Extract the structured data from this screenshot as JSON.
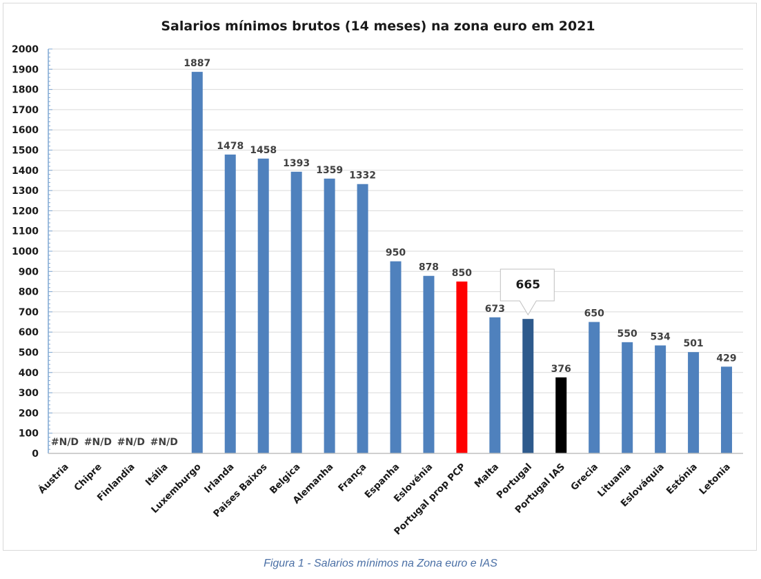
{
  "caption": "Figura 1 - Salarios mínimos na Zona euro e IAS",
  "colors": {
    "default_bar": "#4f81bd",
    "highlight_red": "#ff0000",
    "highlight_dark_blue": "#2e5a8c",
    "highlight_black": "#000000",
    "gridline": "#d9d9d9",
    "axis": "#7fa7d3"
  },
  "chart_data": {
    "type": "bar",
    "title": "Salarios mínimos brutos (14 meses) na zona euro em 2021",
    "xlabel": "",
    "ylabel": "",
    "ylim": [
      0,
      2000
    ],
    "y_ticks": [
      0,
      100,
      200,
      300,
      400,
      500,
      600,
      700,
      800,
      900,
      1000,
      1100,
      1200,
      1300,
      1400,
      1500,
      1600,
      1700,
      1800,
      1900,
      2000
    ],
    "y_tick_labels": [
      "0",
      "100",
      "200",
      "300",
      "400",
      "500",
      "600",
      "700",
      "800",
      "900",
      "1000",
      "1100",
      "1200",
      "1300",
      "1400",
      "1500",
      "1600",
      "1700",
      "1800",
      "1900",
      "2000"
    ],
    "grid": true,
    "legend": "none",
    "categories": [
      "Áustria",
      "Chipre",
      "Finlandia",
      "Itália",
      "Luxemburgo",
      "Irlanda",
      "Paises Baixos",
      "Belgica",
      "Alemanha",
      "França",
      "Espanha",
      "Eslovénia",
      "Portugal prop PCP",
      "Malta",
      "Portugal",
      "Portugal IAS",
      "Grecia",
      "Lituania",
      "Eslováquia",
      "Estónia",
      "Letonia"
    ],
    "values": [
      null,
      null,
      null,
      null,
      1887,
      1478,
      1458,
      1393,
      1359,
      1332,
      950,
      878,
      850,
      673,
      665,
      376,
      650,
      550,
      534,
      501,
      429
    ],
    "value_labels": [
      "#N/D",
      "#N/D",
      "#N/D",
      "#N/D",
      "1887",
      "1478",
      "1458",
      "1393",
      "1359",
      "1332",
      "950",
      "878",
      "850",
      "673",
      "665",
      "376",
      "650",
      "550",
      "534",
      "501",
      "429"
    ],
    "bar_colors": [
      "#4f81bd",
      "#4f81bd",
      "#4f81bd",
      "#4f81bd",
      "#4f81bd",
      "#4f81bd",
      "#4f81bd",
      "#4f81bd",
      "#4f81bd",
      "#4f81bd",
      "#4f81bd",
      "#4f81bd",
      "#ff0000",
      "#4f81bd",
      "#2e5a8c",
      "#000000",
      "#4f81bd",
      "#4f81bd",
      "#4f81bd",
      "#4f81bd",
      "#4f81bd"
    ],
    "callout_index": 14
  }
}
